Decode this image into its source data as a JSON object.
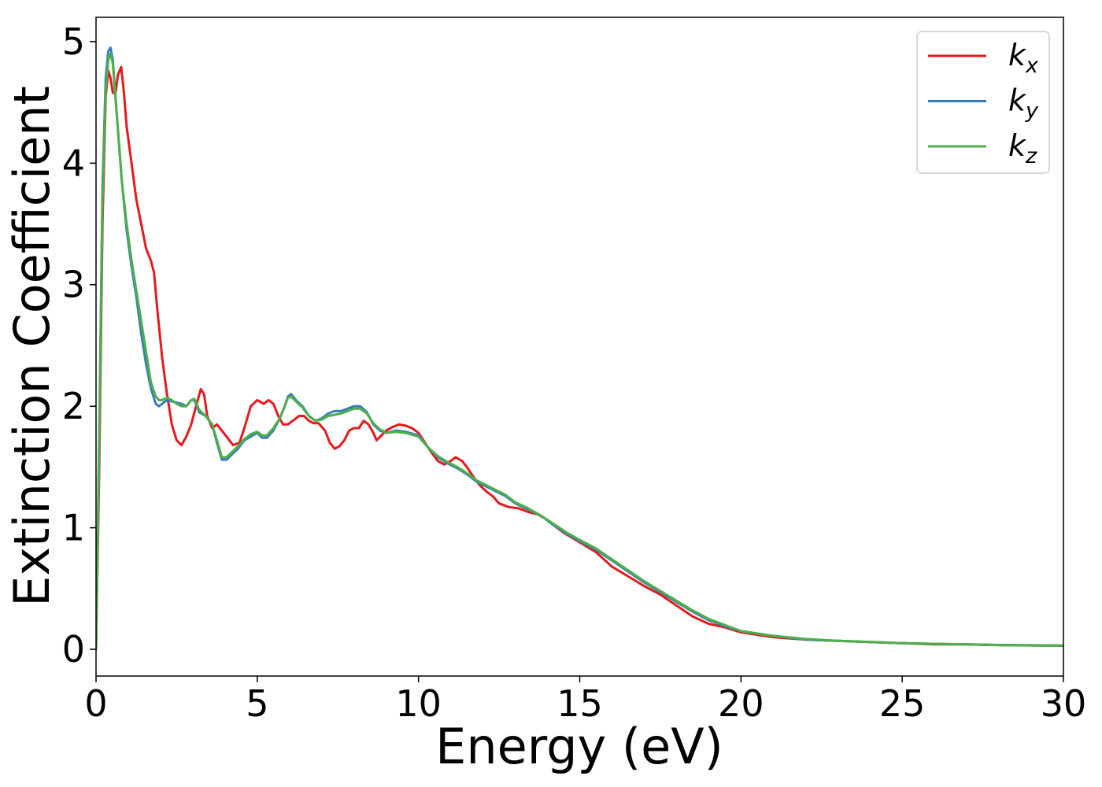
{
  "chart_data": {
    "type": "line",
    "title": "",
    "xlabel": "Energy (eV)",
    "ylabel": "Extinction Coefficient",
    "xlim": [
      0,
      30
    ],
    "ylim": [
      -0.22,
      5.2
    ],
    "xticks": [
      0,
      5,
      10,
      15,
      20,
      25,
      30
    ],
    "yticks": [
      0,
      1,
      2,
      3,
      4,
      5
    ],
    "grid": false,
    "legend_position": "top-right",
    "series": [
      {
        "name": "k_x",
        "legend_base": "k",
        "legend_sub": "x",
        "color": "#e41a1c",
        "points": [
          [
            0,
            0
          ],
          [
            0.1,
            1.5
          ],
          [
            0.2,
            3.5
          ],
          [
            0.3,
            4.55
          ],
          [
            0.38,
            4.76
          ],
          [
            0.45,
            4.7
          ],
          [
            0.52,
            4.58
          ],
          [
            0.6,
            4.57
          ],
          [
            0.68,
            4.73
          ],
          [
            0.78,
            4.79
          ],
          [
            0.86,
            4.6
          ],
          [
            0.95,
            4.3
          ],
          [
            1.1,
            4.0
          ],
          [
            1.25,
            3.7
          ],
          [
            1.4,
            3.5
          ],
          [
            1.55,
            3.3
          ],
          [
            1.7,
            3.2
          ],
          [
            1.8,
            3.1
          ],
          [
            1.9,
            2.8
          ],
          [
            2.05,
            2.4
          ],
          [
            2.2,
            2.1
          ],
          [
            2.35,
            1.85
          ],
          [
            2.5,
            1.72
          ],
          [
            2.65,
            1.68
          ],
          [
            2.8,
            1.75
          ],
          [
            2.95,
            1.85
          ],
          [
            3.1,
            2.0
          ],
          [
            3.25,
            2.14
          ],
          [
            3.35,
            2.1
          ],
          [
            3.45,
            1.92
          ],
          [
            3.6,
            1.82
          ],
          [
            3.75,
            1.85
          ],
          [
            3.9,
            1.8
          ],
          [
            4.05,
            1.75
          ],
          [
            4.25,
            1.68
          ],
          [
            4.45,
            1.7
          ],
          [
            4.6,
            1.82
          ],
          [
            4.8,
            2.0
          ],
          [
            5.0,
            2.05
          ],
          [
            5.2,
            2.02
          ],
          [
            5.35,
            2.05
          ],
          [
            5.5,
            2.02
          ],
          [
            5.65,
            1.92
          ],
          [
            5.8,
            1.85
          ],
          [
            5.95,
            1.85
          ],
          [
            6.1,
            1.88
          ],
          [
            6.3,
            1.92
          ],
          [
            6.45,
            1.92
          ],
          [
            6.6,
            1.88
          ],
          [
            6.75,
            1.86
          ],
          [
            6.9,
            1.86
          ],
          [
            7.1,
            1.8
          ],
          [
            7.25,
            1.7
          ],
          [
            7.4,
            1.65
          ],
          [
            7.55,
            1.67
          ],
          [
            7.7,
            1.72
          ],
          [
            7.85,
            1.8
          ],
          [
            8.0,
            1.82
          ],
          [
            8.15,
            1.82
          ],
          [
            8.3,
            1.88
          ],
          [
            8.45,
            1.85
          ],
          [
            8.6,
            1.78
          ],
          [
            8.7,
            1.72
          ],
          [
            8.85,
            1.76
          ],
          [
            9.0,
            1.8
          ],
          [
            9.2,
            1.83
          ],
          [
            9.4,
            1.85
          ],
          [
            9.6,
            1.84
          ],
          [
            9.8,
            1.82
          ],
          [
            10.0,
            1.78
          ],
          [
            10.2,
            1.7
          ],
          [
            10.4,
            1.62
          ],
          [
            10.6,
            1.55
          ],
          [
            10.8,
            1.52
          ],
          [
            11.0,
            1.55
          ],
          [
            11.15,
            1.58
          ],
          [
            11.35,
            1.55
          ],
          [
            11.5,
            1.5
          ],
          [
            11.7,
            1.42
          ],
          [
            11.9,
            1.35
          ],
          [
            12.1,
            1.3
          ],
          [
            12.3,
            1.26
          ],
          [
            12.5,
            1.2
          ],
          [
            12.8,
            1.17
          ],
          [
            13.1,
            1.16
          ],
          [
            13.4,
            1.13
          ],
          [
            13.7,
            1.11
          ],
          [
            13.9,
            1.08
          ],
          [
            14.2,
            1.02
          ],
          [
            14.5,
            0.96
          ],
          [
            15.0,
            0.88
          ],
          [
            15.5,
            0.8
          ],
          [
            16.0,
            0.68
          ],
          [
            16.5,
            0.6
          ],
          [
            17.0,
            0.52
          ],
          [
            17.5,
            0.45
          ],
          [
            18.0,
            0.36
          ],
          [
            18.5,
            0.27
          ],
          [
            19.0,
            0.21
          ],
          [
            19.5,
            0.18
          ],
          [
            20.0,
            0.14
          ],
          [
            21,
            0.1
          ],
          [
            22,
            0.08
          ],
          [
            23,
            0.07
          ],
          [
            24,
            0.06
          ],
          [
            25,
            0.05
          ],
          [
            26,
            0.04
          ],
          [
            27,
            0.04
          ],
          [
            28,
            0.035
          ],
          [
            29,
            0.033
          ],
          [
            30,
            0.03
          ]
        ]
      },
      {
        "name": "k_y",
        "legend_base": "k",
        "legend_sub": "y",
        "color": "#377eb8",
        "points": [
          [
            0,
            0
          ],
          [
            0.1,
            1.8
          ],
          [
            0.2,
            3.8
          ],
          [
            0.3,
            4.7
          ],
          [
            0.38,
            4.92
          ],
          [
            0.45,
            4.95
          ],
          [
            0.52,
            4.85
          ],
          [
            0.6,
            4.55
          ],
          [
            0.7,
            4.2
          ],
          [
            0.8,
            3.85
          ],
          [
            0.95,
            3.45
          ],
          [
            1.1,
            3.15
          ],
          [
            1.25,
            2.9
          ],
          [
            1.4,
            2.6
          ],
          [
            1.55,
            2.35
          ],
          [
            1.7,
            2.15
          ],
          [
            1.85,
            2.02
          ],
          [
            1.95,
            2.0
          ],
          [
            2.05,
            2.02
          ],
          [
            2.2,
            2.05
          ],
          [
            2.35,
            2.04
          ],
          [
            2.5,
            2.03
          ],
          [
            2.65,
            2.02
          ],
          [
            2.8,
            2.0
          ],
          [
            2.95,
            2.05
          ],
          [
            3.05,
            2.05
          ],
          [
            3.2,
            1.95
          ],
          [
            3.4,
            1.92
          ],
          [
            3.6,
            1.85
          ],
          [
            3.75,
            1.7
          ],
          [
            3.9,
            1.56
          ],
          [
            4.05,
            1.56
          ],
          [
            4.2,
            1.6
          ],
          [
            4.4,
            1.65
          ],
          [
            4.6,
            1.72
          ],
          [
            4.8,
            1.75
          ],
          [
            5.0,
            1.78
          ],
          [
            5.15,
            1.74
          ],
          [
            5.3,
            1.74
          ],
          [
            5.5,
            1.8
          ],
          [
            5.7,
            1.9
          ],
          [
            5.85,
            2.0
          ],
          [
            5.95,
            2.08
          ],
          [
            6.05,
            2.1
          ],
          [
            6.2,
            2.05
          ],
          [
            6.4,
            2.0
          ],
          [
            6.6,
            1.92
          ],
          [
            6.8,
            1.88
          ],
          [
            7.0,
            1.9
          ],
          [
            7.2,
            1.94
          ],
          [
            7.4,
            1.96
          ],
          [
            7.6,
            1.96
          ],
          [
            7.8,
            1.98
          ],
          [
            8.0,
            2.0
          ],
          [
            8.2,
            2.0
          ],
          [
            8.4,
            1.95
          ],
          [
            8.6,
            1.85
          ],
          [
            8.8,
            1.8
          ],
          [
            9.0,
            1.78
          ],
          [
            9.3,
            1.8
          ],
          [
            9.6,
            1.79
          ],
          [
            10.0,
            1.76
          ],
          [
            10.3,
            1.66
          ],
          [
            10.6,
            1.58
          ],
          [
            10.9,
            1.53
          ],
          [
            11.2,
            1.49
          ],
          [
            11.5,
            1.44
          ],
          [
            11.8,
            1.38
          ],
          [
            12.1,
            1.34
          ],
          [
            12.4,
            1.3
          ],
          [
            12.7,
            1.26
          ],
          [
            13.0,
            1.2
          ],
          [
            13.4,
            1.15
          ],
          [
            13.8,
            1.1
          ],
          [
            14.2,
            1.02
          ],
          [
            14.6,
            0.95
          ],
          [
            15.0,
            0.89
          ],
          [
            15.5,
            0.82
          ],
          [
            16.0,
            0.73
          ],
          [
            16.5,
            0.64
          ],
          [
            17.0,
            0.55
          ],
          [
            17.5,
            0.47
          ],
          [
            18.0,
            0.39
          ],
          [
            18.5,
            0.31
          ],
          [
            19.0,
            0.24
          ],
          [
            19.5,
            0.19
          ],
          [
            20.0,
            0.15
          ],
          [
            21,
            0.11
          ],
          [
            22,
            0.08
          ],
          [
            23,
            0.07
          ],
          [
            24,
            0.06
          ],
          [
            25,
            0.05
          ],
          [
            26,
            0.045
          ],
          [
            27,
            0.04
          ],
          [
            28,
            0.035
          ],
          [
            29,
            0.032
          ],
          [
            30,
            0.03
          ]
        ]
      },
      {
        "name": "k_z",
        "legend_base": "k",
        "legend_sub": "z",
        "color": "#4daf4a",
        "points": [
          [
            0,
            0
          ],
          [
            0.1,
            1.7
          ],
          [
            0.2,
            3.7
          ],
          [
            0.3,
            4.6
          ],
          [
            0.38,
            4.85
          ],
          [
            0.45,
            4.9
          ],
          [
            0.52,
            4.82
          ],
          [
            0.6,
            4.55
          ],
          [
            0.7,
            4.2
          ],
          [
            0.8,
            3.85
          ],
          [
            0.95,
            3.5
          ],
          [
            1.1,
            3.2
          ],
          [
            1.25,
            2.95
          ],
          [
            1.4,
            2.7
          ],
          [
            1.55,
            2.45
          ],
          [
            1.7,
            2.2
          ],
          [
            1.85,
            2.08
          ],
          [
            1.95,
            2.05
          ],
          [
            2.05,
            2.05
          ],
          [
            2.2,
            2.07
          ],
          [
            2.35,
            2.05
          ],
          [
            2.5,
            2.02
          ],
          [
            2.65,
            2.0
          ],
          [
            2.8,
            2.0
          ],
          [
            2.95,
            2.05
          ],
          [
            3.05,
            2.06
          ],
          [
            3.2,
            1.97
          ],
          [
            3.4,
            1.92
          ],
          [
            3.6,
            1.85
          ],
          [
            3.75,
            1.72
          ],
          [
            3.9,
            1.58
          ],
          [
            4.05,
            1.58
          ],
          [
            4.2,
            1.62
          ],
          [
            4.4,
            1.67
          ],
          [
            4.6,
            1.73
          ],
          [
            4.8,
            1.77
          ],
          [
            5.0,
            1.79
          ],
          [
            5.15,
            1.76
          ],
          [
            5.3,
            1.76
          ],
          [
            5.5,
            1.82
          ],
          [
            5.7,
            1.9
          ],
          [
            5.85,
            2.0
          ],
          [
            5.95,
            2.07
          ],
          [
            6.05,
            2.08
          ],
          [
            6.2,
            2.04
          ],
          [
            6.4,
            1.99
          ],
          [
            6.6,
            1.92
          ],
          [
            6.8,
            1.88
          ],
          [
            7.0,
            1.89
          ],
          [
            7.2,
            1.92
          ],
          [
            7.4,
            1.93
          ],
          [
            7.6,
            1.94
          ],
          [
            7.8,
            1.96
          ],
          [
            8.0,
            1.98
          ],
          [
            8.2,
            1.98
          ],
          [
            8.4,
            1.94
          ],
          [
            8.6,
            1.86
          ],
          [
            8.8,
            1.81
          ],
          [
            9.0,
            1.78
          ],
          [
            9.3,
            1.79
          ],
          [
            9.6,
            1.78
          ],
          [
            10.0,
            1.75
          ],
          [
            10.3,
            1.66
          ],
          [
            10.6,
            1.59
          ],
          [
            10.9,
            1.54
          ],
          [
            11.2,
            1.5
          ],
          [
            11.5,
            1.45
          ],
          [
            11.8,
            1.39
          ],
          [
            12.1,
            1.35
          ],
          [
            12.4,
            1.31
          ],
          [
            12.7,
            1.27
          ],
          [
            13.0,
            1.21
          ],
          [
            13.4,
            1.16
          ],
          [
            13.8,
            1.1
          ],
          [
            14.2,
            1.03
          ],
          [
            14.6,
            0.96
          ],
          [
            15.0,
            0.9
          ],
          [
            15.5,
            0.83
          ],
          [
            16.0,
            0.74
          ],
          [
            16.5,
            0.65
          ],
          [
            17.0,
            0.56
          ],
          [
            17.5,
            0.48
          ],
          [
            18.0,
            0.4
          ],
          [
            18.5,
            0.32
          ],
          [
            19.0,
            0.25
          ],
          [
            19.5,
            0.2
          ],
          [
            20.0,
            0.15
          ],
          [
            21,
            0.11
          ],
          [
            22,
            0.085
          ],
          [
            23,
            0.07
          ],
          [
            24,
            0.06
          ],
          [
            25,
            0.05
          ],
          [
            26,
            0.045
          ],
          [
            27,
            0.04
          ],
          [
            28,
            0.035
          ],
          [
            29,
            0.032
          ],
          [
            30,
            0.03
          ]
        ]
      }
    ]
  }
}
